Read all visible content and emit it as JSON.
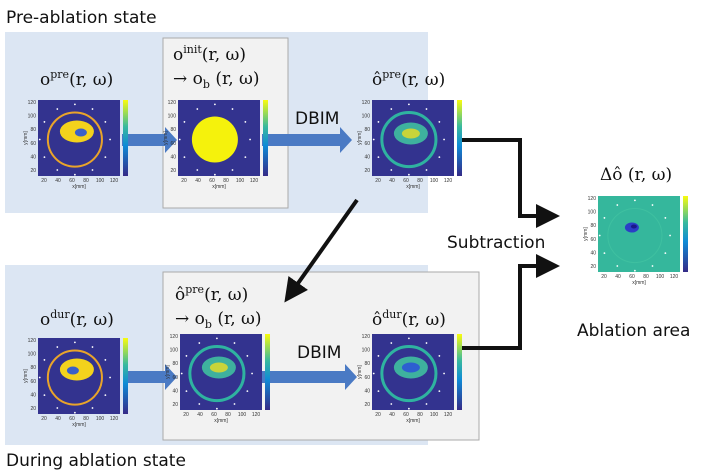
{
  "pre_panel": {
    "title": "Pre-ablation state",
    "input": {
      "base": "o",
      "sup": "pre",
      "args": "(r, ω)"
    },
    "initial": {
      "base": "o",
      "sup": "init",
      "args": "(r, ω)",
      "arrow": "→",
      "bg_base": "o",
      "bg_sub": "b",
      "bg_args": "(r, ω)"
    },
    "method": "DBIM",
    "output": {
      "base": "ô",
      "sup": "pre",
      "args": "(r, ω)"
    }
  },
  "during_panel": {
    "title": "During ablation state",
    "input": {
      "base": "o",
      "sup": "dur",
      "args": "(r, ω)"
    },
    "initial": {
      "base": "ô",
      "sup": "pre",
      "args": "(r, ω)",
      "arrow": "→",
      "bg_base": "o",
      "bg_sub": "b",
      "bg_args": "(r, ω)"
    },
    "method": "DBIM",
    "output": {
      "base": "ô",
      "sup": "dur",
      "args": "(r, ω)"
    }
  },
  "subtraction": "Subtraction",
  "result": {
    "base": "Δô",
    "args": "(r, ω)",
    "caption": "Ablation area"
  },
  "plot_axes": {
    "xticks": [
      "20",
      "40",
      "60",
      "80",
      "100",
      "120"
    ],
    "yticks": [
      "20",
      "40",
      "60",
      "80",
      "100",
      "120"
    ],
    "xlabel": "x[mm]",
    "ylabel": "y[mm]"
  }
}
